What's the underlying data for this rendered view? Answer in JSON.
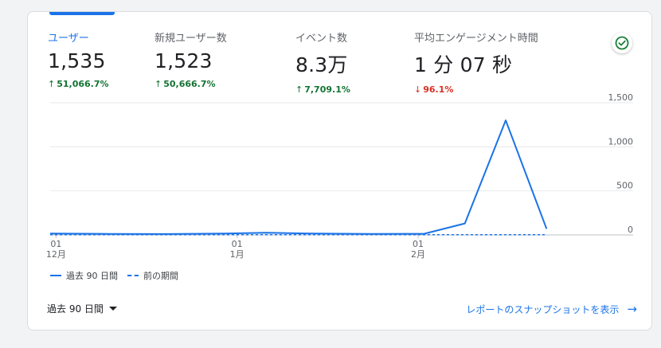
{
  "metrics": [
    {
      "label": "ユーザー",
      "value": "1,535",
      "delta": "51,066.7%",
      "direction": "up",
      "active": true
    },
    {
      "label": "新規ユーザー数",
      "value": "1,523",
      "delta": "50,666.7%",
      "direction": "up",
      "active": false
    },
    {
      "label": "イベント数",
      "value": "8.3万",
      "delta": "7,709.1%",
      "direction": "up",
      "active": false
    },
    {
      "label": "平均エンゲージメント時間",
      "value": "1 分 07 秒",
      "delta": "96.1%",
      "direction": "down",
      "active": false
    }
  ],
  "icons": {
    "status": "check-circle-icon",
    "up": "arrow-up-icon",
    "down": "arrow-down-icon",
    "caret": "caret-down-icon",
    "link": "arrow-right-icon"
  },
  "colors": {
    "accent": "#1a73e8",
    "positive": "#137333",
    "negative": "#d93025",
    "status_check": "#188038"
  },
  "chart_data": {
    "type": "line",
    "y_ticks": [
      "1,500",
      "1,000",
      "500",
      "0"
    ],
    "ylim": [
      0,
      1500
    ],
    "x_ticks": [
      {
        "day": "01",
        "month": "12月",
        "index": 1
      },
      {
        "day": "01",
        "month": "1月",
        "index": 32
      },
      {
        "day": "01",
        "month": "2月",
        "index": 63
      }
    ],
    "x_domain": [
      0,
      90
    ],
    "series": [
      {
        "name": "過去 90 日間",
        "style": "solid",
        "points": [
          [
            0,
            15
          ],
          [
            10,
            12
          ],
          [
            20,
            10
          ],
          [
            30,
            15
          ],
          [
            37,
            25
          ],
          [
            45,
            15
          ],
          [
            55,
            12
          ],
          [
            64,
            13
          ],
          [
            71,
            130
          ],
          [
            78,
            1300
          ],
          [
            85,
            70
          ]
        ]
      },
      {
        "name": "前の期間",
        "style": "dashed",
        "points": [
          [
            0,
            3
          ],
          [
            85,
            3
          ]
        ]
      }
    ],
    "legend": [
      "過去 90 日間",
      "前の期間"
    ],
    "grid": true
  },
  "footer": {
    "period_label": "過去 90 日間",
    "snapshot_link": "レポートのスナップショットを表示"
  }
}
